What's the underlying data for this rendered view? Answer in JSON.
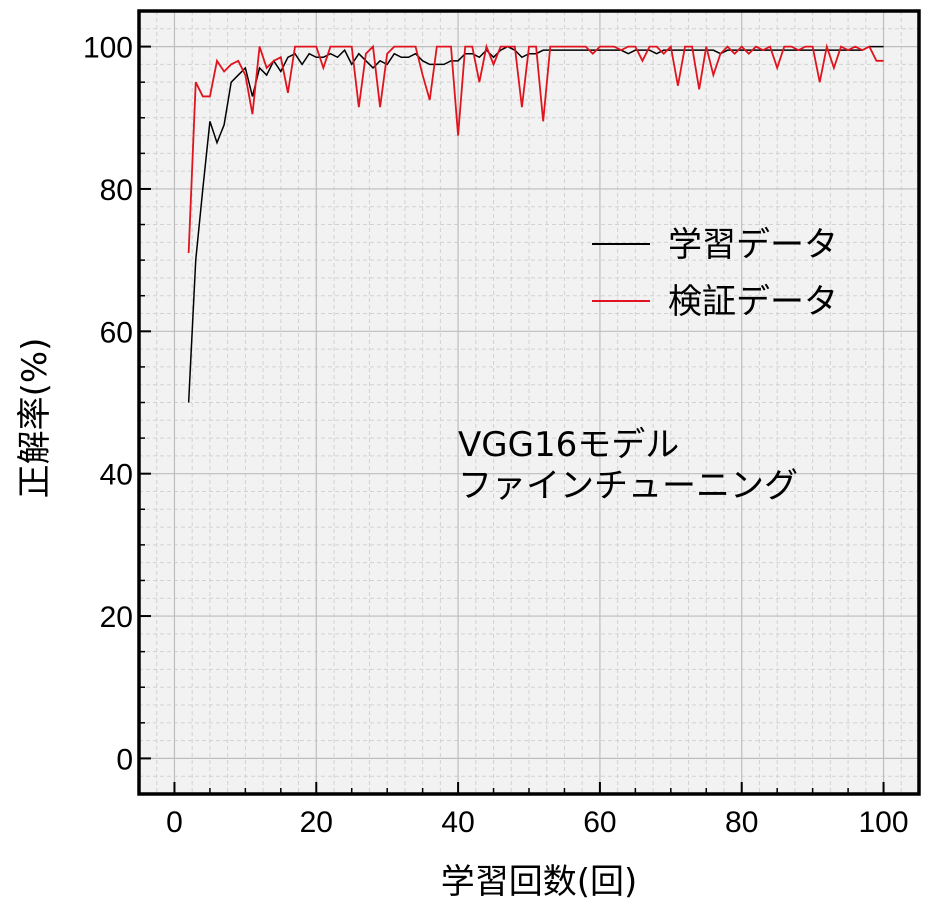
{
  "chart_data": {
    "type": "line",
    "xlabel": "学習回数(回)",
    "ylabel": "正解率(%)",
    "xlim": [
      -5,
      105
    ],
    "ylim": [
      -5,
      105
    ],
    "xticks": [
      0,
      20,
      40,
      60,
      80,
      100
    ],
    "yticks": [
      0,
      20,
      40,
      60,
      80,
      100
    ],
    "xtick_labels": [
      "0",
      "20",
      "40",
      "60",
      "80",
      "100"
    ],
    "ytick_labels": [
      "0",
      "20",
      "40",
      "60",
      "80",
      "100"
    ],
    "grid": true,
    "legend": "right",
    "annotations": [
      "VGG16モデル",
      "ファインチューニング"
    ],
    "x": [
      2,
      3,
      4,
      5,
      6,
      7,
      8,
      9,
      10,
      11,
      12,
      13,
      14,
      15,
      16,
      17,
      18,
      19,
      20,
      21,
      22,
      23,
      24,
      25,
      26,
      27,
      28,
      29,
      30,
      31,
      32,
      33,
      34,
      35,
      36,
      37,
      38,
      39,
      40,
      41,
      42,
      43,
      44,
      45,
      46,
      47,
      48,
      49,
      50,
      51,
      52,
      53,
      54,
      55,
      56,
      57,
      58,
      59,
      60,
      61,
      62,
      63,
      64,
      65,
      66,
      67,
      68,
      69,
      70,
      71,
      72,
      73,
      74,
      75,
      76,
      77,
      78,
      79,
      80,
      81,
      82,
      83,
      84,
      85,
      86,
      87,
      88,
      89,
      90,
      91,
      92,
      93,
      94,
      95,
      96,
      97,
      98,
      99,
      100
    ],
    "series": [
      {
        "name": "学習データ",
        "color": "#000000",
        "values": [
          50,
          70,
          80,
          89.5,
          86.5,
          89,
          95,
          96,
          97,
          93,
          97,
          96,
          98,
          96.5,
          98.5,
          99,
          97.5,
          99,
          98.5,
          98.5,
          99,
          98.5,
          99.5,
          97.5,
          99,
          98,
          97,
          98,
          97.5,
          99,
          98.5,
          98.5,
          99,
          98,
          97.5,
          97.5,
          97.5,
          98,
          98,
          99,
          99,
          98.5,
          99.5,
          98.5,
          99.5,
          100,
          99.5,
          98.5,
          99,
          99,
          99.5,
          99.5,
          99.5,
          99.5,
          99.5,
          99.5,
          99.5,
          99.5,
          99.5,
          99.5,
          99.5,
          99.5,
          99,
          99.5,
          99.5,
          99.5,
          99,
          99.5,
          99.5,
          99.5,
          99.5,
          99.5,
          99.5,
          99.5,
          99.5,
          99,
          99.5,
          99.5,
          99.5,
          99.5,
          99.5,
          99.5,
          99.5,
          99.5,
          99.5,
          99.5,
          99.5,
          99.5,
          99.5,
          99.5,
          99.5,
          99.5,
          99.5,
          99.5,
          99.5,
          99.5,
          100,
          100,
          100
        ]
      },
      {
        "name": "検証データ",
        "color": "#e0141e",
        "values": [
          71,
          95,
          93,
          93,
          98,
          96.5,
          97.5,
          98,
          96,
          90.5,
          100,
          97,
          98,
          98.5,
          93.5,
          100,
          100,
          100,
          100,
          97,
          100,
          100,
          100,
          100,
          91.5,
          99,
          100,
          91.5,
          99,
          100,
          100,
          100,
          100,
          96,
          92.5,
          100,
          100,
          100,
          87.5,
          100,
          100,
          95,
          100,
          97.5,
          100,
          100,
          100,
          91.5,
          100,
          100,
          89.5,
          100,
          100,
          100,
          100,
          100,
          100,
          99,
          100,
          100,
          100,
          99.5,
          100,
          100,
          98,
          100,
          100,
          99,
          100,
          94.5,
          100,
          100,
          94,
          100,
          96,
          99,
          100,
          99,
          100,
          99,
          100,
          99.5,
          100,
          97,
          100,
          100,
          99.5,
          100,
          100,
          95,
          100,
          97,
          100,
          99.5,
          100,
          99.5,
          100,
          98,
          98
        ]
      }
    ]
  }
}
